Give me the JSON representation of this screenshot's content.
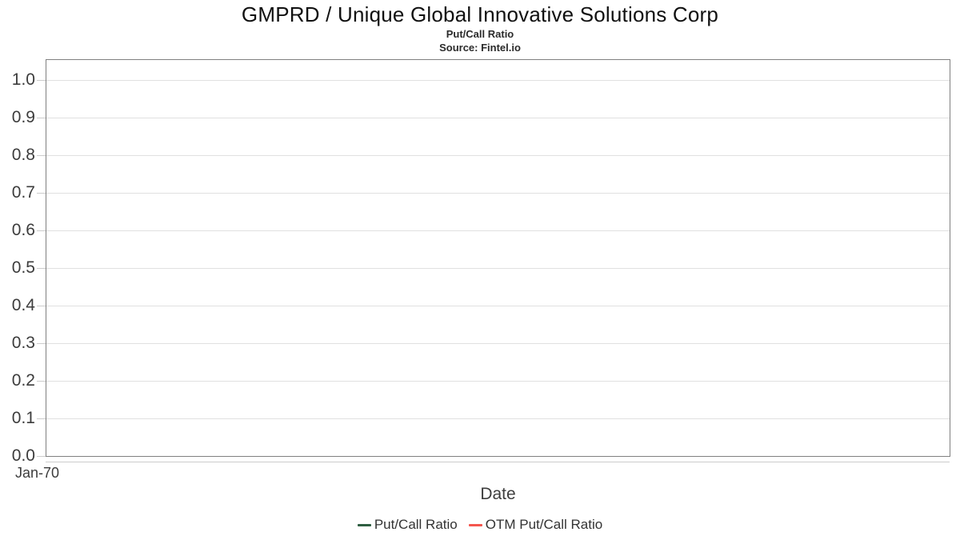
{
  "header": {
    "title": "GMPRD / Unique Global Innovative Solutions Corp",
    "subtitle": "Put/Call Ratio",
    "source": "Source: Fintel.io"
  },
  "axes": {
    "x_title": "Date",
    "x_tick_labels": [
      "Jan-70"
    ]
  },
  "chart_data": {
    "type": "line",
    "title": "GMPRD / Unique Global Innovative Solutions Corp",
    "subtitle": "Put/Call Ratio",
    "source": "Source: Fintel.io",
    "xlabel": "Date",
    "ylabel": "",
    "x_tick_labels": [
      "Jan-70"
    ],
    "ylim": [
      0.0,
      1.055
    ],
    "yticks": [
      {
        "label": "0.0",
        "value": 0.0
      },
      {
        "label": "0.1",
        "value": 0.1
      },
      {
        "label": "0.2",
        "value": 0.2
      },
      {
        "label": "0.3",
        "value": 0.3
      },
      {
        "label": "0.4",
        "value": 0.4
      },
      {
        "label": "0.5",
        "value": 0.5
      },
      {
        "label": "0.6",
        "value": 0.6
      },
      {
        "label": "0.7",
        "value": 0.7
      },
      {
        "label": "0.8",
        "value": 0.8
      },
      {
        "label": "0.9",
        "value": 0.9
      },
      {
        "label": "1.0",
        "value": 1.0
      }
    ],
    "grid": true,
    "legend_position": "bottom",
    "series": [
      {
        "name": "Put/Call Ratio",
        "color": "#2e5e41",
        "x": [],
        "values": []
      },
      {
        "name": "OTM Put/Call Ratio",
        "color": "#f4564e",
        "x": [],
        "values": []
      }
    ]
  },
  "colors": {
    "plot_border": "#808080",
    "gridline": "#e0e0e0",
    "tick": "#cccccc",
    "tick_label": "#3c3c3c",
    "series_putcall": "#2e5e41",
    "series_otm_putcall": "#f4564e"
  }
}
